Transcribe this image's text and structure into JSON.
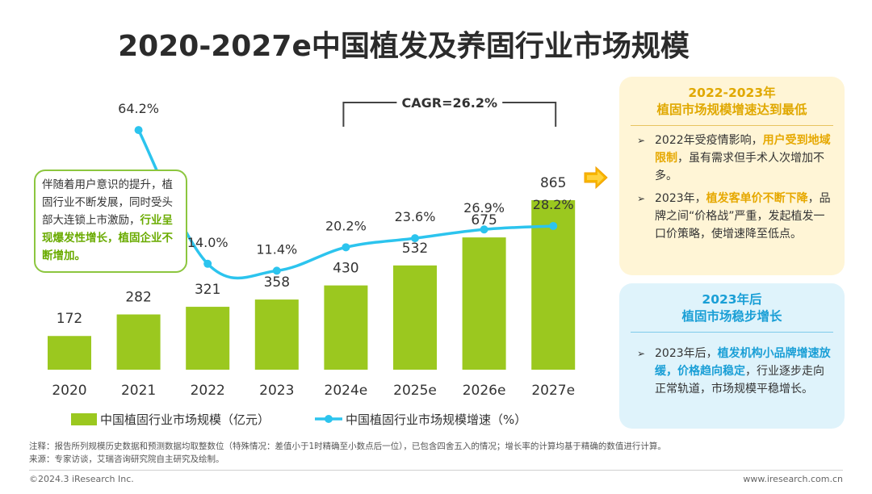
{
  "title": "2020-2027e中国植发及养固行业市场规模",
  "chart_data": {
    "type": "bar+line",
    "categories": [
      "2020",
      "2021",
      "2022",
      "2023",
      "2024e",
      "2025e",
      "2026e",
      "2027e"
    ],
    "bars": {
      "name": "中国植固行业市场规模（亿元）",
      "values": [
        172,
        282,
        321,
        358,
        430,
        532,
        675,
        865
      ],
      "color": "#9bc81f"
    },
    "line": {
      "name": "中国植固行业市场规模增速（%）",
      "values": [
        null,
        64.2,
        14.0,
        11.4,
        20.2,
        23.6,
        26.9,
        28.2
      ],
      "labels": [
        "",
        "64.2%",
        "14.0%",
        "11.4%",
        "20.2%",
        "23.6%",
        "26.9%",
        "28.2%"
      ],
      "color": "#2cc4ee"
    },
    "cagr_label": "CAGR=26.2%"
  },
  "callout": {
    "plain1": "伴随着用户意识的提升，植固行业不断发展，同时受头部大连锁上市激励，",
    "highlight": "行业呈现爆发性增长，植固企业不断增加。"
  },
  "panel1": {
    "title_line1": "2022-2023年",
    "title_line2": "植固市场规模增速达到最低",
    "b1_pre": "2022年受疫情影响，",
    "b1_hl": "用户受到地域限制",
    "b1_post": "，虽有需求但手术人次增加不多。",
    "b2_pre": "2023年，",
    "b2_hl": "植发客单价不断下降",
    "b2_post": "，品牌之间“价格战”严重，发起植发一口价策略，使增速降至低点。"
  },
  "panel2": {
    "title_line1": "2023年后",
    "title_line2": "植固市场稳步增长",
    "b1_pre": "2023年后，",
    "b1_hl": "植发机构小品牌增速放缓，价格趋向稳定",
    "b1_post": "，行业逐步走向正常轨道，市场规模平稳增长。"
  },
  "bullet_mark": "➢",
  "notes": {
    "line1": "注释：报告所列规模历史数据和预测数据均取整数位（特殊情况：差值小于1时精确至小数点后一位），已包含四舍五入的情况；增长率的计算均基于精确的数值进行计算。",
    "line2": "来源：专家访谈，艾瑞咨询研究院自主研究及绘制。"
  },
  "footer": {
    "left": "©2024.3 iResearch Inc.",
    "right": "www.iresearch.com.cn"
  }
}
